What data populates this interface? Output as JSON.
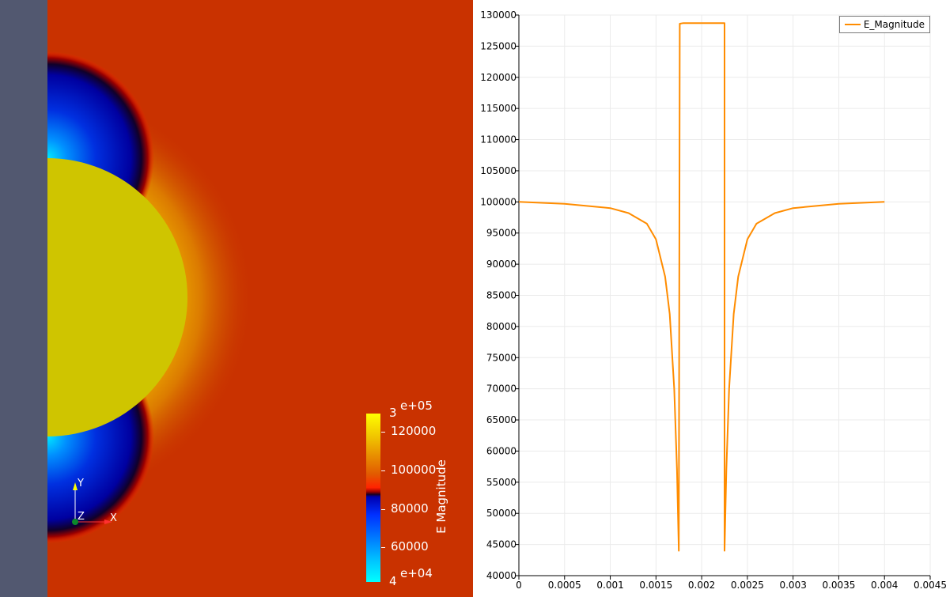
{
  "render_view": {
    "background_color": "#c93200",
    "sphere_color": "#cfc500",
    "side_panel_color": "#525870",
    "axes": {
      "x_label": "X",
      "y_label": "Y",
      "z_label": "Z"
    },
    "colorbar": {
      "title": "E Magnitude",
      "top_exponent": "e+05",
      "bottom_exponent": "e+04",
      "top_prefix": "3",
      "bottom_prefix": "4",
      "tick_labels": [
        "120000",
        "100000",
        "80000",
        "60000"
      ]
    }
  },
  "chart_data": {
    "type": "line",
    "series": [
      {
        "name": "E_Magnitude",
        "color": "#ff8c00",
        "x": [
          0,
          0.0005,
          0.001,
          0.0012,
          0.0014,
          0.0015,
          0.0016,
          0.00165,
          0.0017,
          0.00173,
          0.00175,
          0.00175,
          0.00176,
          0.0018,
          0.002,
          0.0022,
          0.00224,
          0.00225,
          0.00225,
          0.00227,
          0.0023,
          0.00235,
          0.0024,
          0.0025,
          0.0026,
          0.0028,
          0.003,
          0.0035,
          0.004
        ],
        "y": [
          100000,
          99700,
          99000,
          98200,
          96500,
          94000,
          88000,
          82000,
          70000,
          57000,
          44000,
          44000,
          128600,
          128700,
          128700,
          128700,
          128700,
          128700,
          44000,
          57000,
          70000,
          82000,
          88000,
          94000,
          96500,
          98200,
          99000,
          99700,
          100000
        ]
      }
    ],
    "xlim": [
      0,
      0.0045
    ],
    "ylim": [
      40000,
      130000
    ],
    "x_ticks": [
      "0",
      "0.0005",
      "0.001",
      "0.0015",
      "0.002",
      "0.0025",
      "0.003",
      "0.0035",
      "0.004",
      "0.0045"
    ],
    "y_ticks": [
      "40000",
      "45000",
      "50000",
      "55000",
      "60000",
      "65000",
      "70000",
      "75000",
      "80000",
      "85000",
      "90000",
      "95000",
      "100000",
      "105000",
      "110000",
      "115000",
      "120000",
      "125000",
      "130000"
    ],
    "legend_position": "top-right",
    "grid": true
  }
}
